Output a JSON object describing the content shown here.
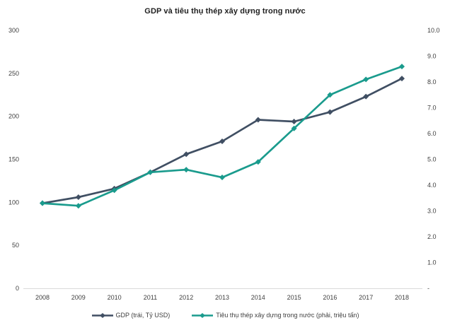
{
  "colors": {
    "gdp": "#404F63",
    "steel": "#1A9B8D",
    "axis_line": "#D9D9D9",
    "text": "#404040",
    "title_text": "#1F1F1F",
    "background": "#FFFFFF"
  },
  "chart_data": {
    "type": "line",
    "title": "GDP và tiêu thụ thép xây dựng trong nước",
    "categories": [
      "2008",
      "2009",
      "2010",
      "2011",
      "2012",
      "2013",
      "2014",
      "2015",
      "2016",
      "2017",
      "2018"
    ],
    "series": [
      {
        "name": "GDP (trái, Tỷ USD)",
        "axis": "left",
        "color": "#404F63",
        "marker": "diamond",
        "values": [
          99,
          106,
          116,
          135,
          156,
          171,
          196,
          194,
          205,
          223,
          244
        ]
      },
      {
        "name": "Tiêu thụ thép xây dựng trong nước (phải, triệu tấn)",
        "axis": "right",
        "color": "#1A9B8D",
        "marker": "diamond",
        "values": [
          3.3,
          3.2,
          3.8,
          4.5,
          4.6,
          4.3,
          4.9,
          6.2,
          7.5,
          8.1,
          8.6
        ]
      }
    ],
    "left_axis": {
      "min": 0,
      "max": 300,
      "ticks": [
        "300",
        "250",
        "200",
        "150",
        "100",
        "50",
        "0"
      ]
    },
    "right_axis": {
      "min": 0,
      "max": 10,
      "ticks": [
        "10.0",
        "9.0",
        "8.0",
        "7.0",
        "6.0",
        "5.0",
        "4.0",
        "3.0",
        "2.0",
        "1.0",
        "-"
      ]
    },
    "xlabel": "",
    "ylabel_left": "Tỷ USD",
    "ylabel_right": "triệu tấn",
    "grid": false,
    "legend_position": "bottom"
  }
}
